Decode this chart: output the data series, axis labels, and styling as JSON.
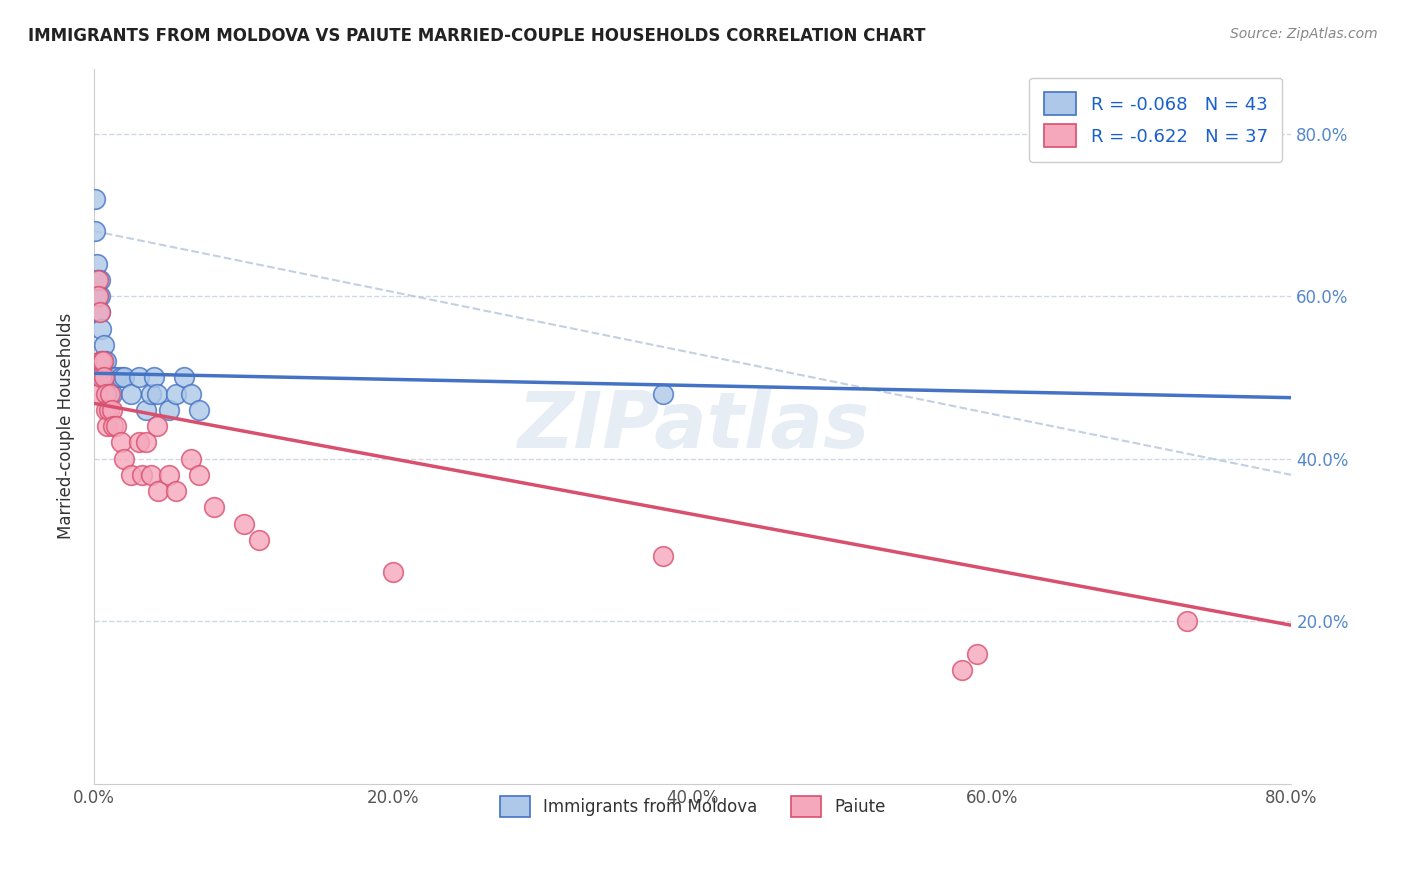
{
  "title": "IMMIGRANTS FROM MOLDOVA VS PAIUTE MARRIED-COUPLE HOUSEHOLDS CORRELATION CHART",
  "source": "Source: ZipAtlas.com",
  "ylabel": "Married-couple Households",
  "xlabel": "",
  "legend_label1": "Immigrants from Moldova",
  "legend_label2": "Paiute",
  "r1": -0.068,
  "n1": 43,
  "r2": -0.622,
  "n2": 37,
  "xlim": [
    0.0,
    0.8
  ],
  "ylim": [
    0.0,
    0.88
  ],
  "xticks": [
    0.0,
    0.2,
    0.4,
    0.6,
    0.8
  ],
  "yticks": [
    0.2,
    0.4,
    0.6,
    0.8
  ],
  "color_blue": "#adc8e8",
  "color_pink": "#f5a8bc",
  "line_blue": "#4472c4",
  "line_pink": "#d94f6e",
  "line_dash": "#b8c8dc",
  "background": "#ffffff",
  "watermark": "ZIPatlas",
  "moldova_x": [
    0.001,
    0.001,
    0.002,
    0.002,
    0.002,
    0.003,
    0.003,
    0.003,
    0.004,
    0.004,
    0.004,
    0.005,
    0.005,
    0.005,
    0.006,
    0.006,
    0.007,
    0.007,
    0.007,
    0.008,
    0.008,
    0.009,
    0.009,
    0.01,
    0.01,
    0.011,
    0.012,
    0.013,
    0.015,
    0.018,
    0.02,
    0.025,
    0.03,
    0.035,
    0.038,
    0.04,
    0.042,
    0.05,
    0.055,
    0.06,
    0.065,
    0.07,
    0.38
  ],
  "moldova_y": [
    0.72,
    0.68,
    0.64,
    0.62,
    0.6,
    0.62,
    0.6,
    0.58,
    0.62,
    0.6,
    0.58,
    0.52,
    0.5,
    0.56,
    0.5,
    0.52,
    0.5,
    0.52,
    0.54,
    0.5,
    0.52,
    0.5,
    0.48,
    0.5,
    0.48,
    0.5,
    0.48,
    0.5,
    0.5,
    0.5,
    0.5,
    0.48,
    0.5,
    0.46,
    0.48,
    0.5,
    0.48,
    0.46,
    0.48,
    0.5,
    0.48,
    0.46,
    0.48
  ],
  "paiute_x": [
    0.002,
    0.003,
    0.003,
    0.004,
    0.005,
    0.005,
    0.006,
    0.007,
    0.008,
    0.008,
    0.009,
    0.01,
    0.011,
    0.012,
    0.013,
    0.015,
    0.018,
    0.02,
    0.025,
    0.03,
    0.032,
    0.035,
    0.038,
    0.042,
    0.043,
    0.05,
    0.055,
    0.065,
    0.07,
    0.08,
    0.1,
    0.11,
    0.2,
    0.38,
    0.58,
    0.59,
    0.73
  ],
  "paiute_y": [
    0.48,
    0.62,
    0.6,
    0.58,
    0.52,
    0.5,
    0.52,
    0.5,
    0.48,
    0.46,
    0.44,
    0.46,
    0.48,
    0.46,
    0.44,
    0.44,
    0.42,
    0.4,
    0.38,
    0.42,
    0.38,
    0.42,
    0.38,
    0.44,
    0.36,
    0.38,
    0.36,
    0.4,
    0.38,
    0.34,
    0.32,
    0.3,
    0.26,
    0.28,
    0.14,
    0.16,
    0.2
  ],
  "blue_line_x0": 0.0,
  "blue_line_y0": 0.505,
  "blue_line_x1": 0.8,
  "blue_line_y1": 0.475,
  "pink_line_x0": 0.0,
  "pink_line_y0": 0.468,
  "pink_line_x1": 0.8,
  "pink_line_y1": 0.195,
  "dash_line_x0": 0.0,
  "dash_line_y0": 0.68,
  "dash_line_x1": 0.8,
  "dash_line_y1": 0.38
}
